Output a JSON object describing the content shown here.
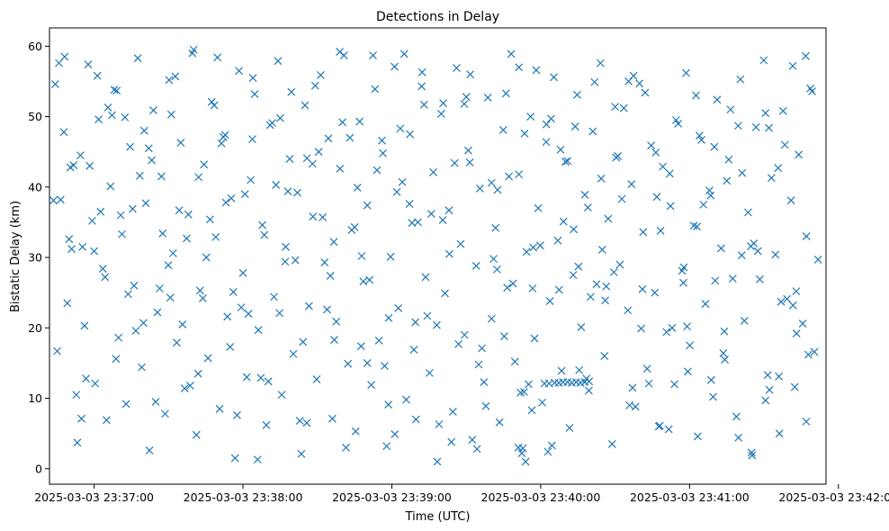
{
  "chart_data": {
    "type": "scatter",
    "title": "Detections in Delay",
    "xlabel": "Time (UTC)",
    "ylabel": "Bistatic Delay (km)",
    "x_units": "seconds since 2025-03-03 23:36:42",
    "xlim": [
      0,
      313
    ],
    "ylim": [
      -2.2,
      62.6
    ],
    "xticks": [
      18,
      78,
      138,
      198,
      258,
      318
    ],
    "xtick_labels": [
      "2025-03-03 23:37:00",
      "2025-03-03 23:38:00",
      "2025-03-03 23:39:00",
      "2025-03-03 23:40:00",
      "2025-03-03 23:41:00",
      "2025-03-03 23:42:00"
    ],
    "yticks": [
      0,
      10,
      20,
      30,
      40,
      50,
      60
    ],
    "ytick_labels": [
      "0",
      "10",
      "20",
      "30",
      "40",
      "50",
      "60"
    ],
    "marker": "x",
    "color": "#1f77b4",
    "series": [
      {
        "name": "detections",
        "x": [
          2.3,
          3.1,
          5.8,
          7.2,
          8.9,
          11.2,
          12.5,
          14.1,
          15.6,
          17.2,
          18.4,
          19.8,
          21.5,
          23.0,
          24.6,
          26.1,
          27.8,
          29.2,
          30.9,
          32.5,
          34.1,
          35.6,
          37.2,
          38.8,
          40.3,
          41.9,
          43.5,
          45.1,
          46.6,
          48.2,
          49.8,
          51.3,
          52.9,
          54.5,
          56.0,
          57.6,
          59.2,
          60.7,
          62.3,
          63.9,
          65.4,
          67.0,
          68.6,
          70.1,
          71.7,
          73.3,
          74.8,
          76.4,
          78.0,
          79.5,
          81.1,
          82.7,
          84.2,
          85.8,
          87.4,
          88.9,
          90.5,
          92.1,
          93.6,
          95.2,
          96.8,
          98.3,
          99.9,
          101.5,
          103.0,
          104.6,
          106.2,
          107.7,
          109.3,
          110.9,
          112.4,
          114.0,
          115.6,
          117.1,
          118.7,
          120.3,
          121.8,
          123.4,
          125.0,
          126.5,
          128.1,
          129.7,
          131.2,
          132.8,
          134.4,
          135.9,
          137.5,
          139.1,
          140.6,
          142.2,
          143.8,
          145.3,
          146.9,
          148.5,
          150.0,
          151.6,
          153.2,
          154.7,
          156.3,
          157.9,
          159.4,
          161.0,
          162.6,
          164.1,
          165.7,
          167.3,
          168.8,
          170.4,
          172.0,
          173.5,
          175.1,
          176.7,
          178.2,
          179.8,
          181.4,
          182.9,
          184.5,
          186.1,
          187.6,
          189.2,
          190.8,
          192.3,
          193.9,
          195.5,
          197.0,
          198.6,
          200.2,
          201.7,
          203.3,
          204.9,
          206.4,
          208.0,
          209.6,
          211.1,
          212.7,
          214.3,
          215.8,
          217.4,
          219.0,
          220.5,
          222.1,
          223.7,
          225.2,
          226.8,
          228.4,
          229.9,
          231.5,
          233.1,
          234.6,
          236.2,
          237.8,
          239.3,
          240.9,
          242.5,
          244.0,
          245.6,
          247.2,
          248.7,
          250.3,
          251.9,
          253.4,
          255.0,
          256.6,
          258.1,
          259.7,
          261.3,
          262.8,
          264.4,
          266.0,
          267.5,
          269.1,
          270.7,
          272.2,
          273.8,
          275.4,
          276.9,
          278.5,
          280.1,
          281.6,
          283.2,
          284.8,
          286.3,
          287.9,
          289.5,
          291.0,
          292.6,
          294.2,
          295.7,
          297.3,
          298.9,
          300.4,
          302.0,
          303.6,
          305.1,
          306.7,
          308.3,
          309.8,
          4.5,
          9.7,
          13.3,
          20.6,
          25.2,
          31.7,
          36.4,
          42.8,
          47.9,
          53.6,
          58.1,
          64.7,
          69.3,
          75.6,
          80.2,
          86.6,
          91.3,
          97.5,
          102.2,
          108.5,
          113.2,
          119.5,
          124.1,
          130.4,
          135.1,
          141.4,
          146.1,
          152.3,
          157.0,
          163.3,
          168.0,
          174.3,
          179.0,
          185.2,
          189.9,
          196.2,
          200.9,
          207.2,
          211.9,
          218.1,
          222.8,
          229.1,
          233.8,
          240.1,
          244.8,
          251.0,
          255.7,
          262.0,
          266.7,
          273.0,
          277.7,
          283.9,
          288.6,
          294.9,
          299.6,
          305.9,
          6.1,
          10.8,
          16.2,
          22.4,
          27.1,
          33.5,
          38.2,
          44.4,
          49.1,
          55.3,
          60.1,
          66.4,
          71.1,
          77.3,
          82.0,
          88.2,
          93.0,
          99.1,
          103.8,
          110.1,
          114.8,
          121.1,
          125.8,
          132.0,
          136.7,
          143.0,
          147.7,
          153.9,
          158.7,
          164.9,
          169.6,
          175.9,
          180.6,
          186.8,
          191.5,
          197.8,
          202.5,
          208.8,
          213.5,
          219.7,
          224.4,
          230.7,
          235.4,
          241.6,
          246.3,
          252.6,
          257.3,
          263.6,
          268.3,
          274.5,
          279.2,
          285.5,
          290.2,
          296.4,
          301.1,
          307.4,
          199.5,
          201.4,
          203.6,
          205.3,
          207.0,
          208.8,
          210.5,
          212.3,
          214.0,
          215.8,
          217.5,
          189.0,
          190.4,
          191.9,
          193.1,
          194.7,
          3.8,
          8.4,
          12.9,
          18.0,
          23.6,
          28.7,
          34.8,
          40.0,
          45.6,
          50.7,
          56.7,
          61.8,
          67.7,
          72.8,
          78.8,
          83.9,
          89.8,
          95.0,
          100.9,
          106.0,
          111.9,
          117.0,
          123.0,
          128.1,
          134.0,
          139.2,
          145.1,
          150.2,
          156.1,
          161.2,
          167.2,
          172.3,
          178.2,
          183.3,
          189.2,
          194.4,
          200.3,
          205.4,
          211.3,
          216.4,
          222.4,
          227.5,
          233.4,
          238.5,
          244.4,
          249.6,
          255.5,
          260.6,
          266.5,
          271.6,
          277.6,
          282.7,
          288.6,
          293.7,
          299.7,
          304.8,
          1.6,
          7.9,
          14.7,
          19.3,
          26.8,
          30.4,
          37.9,
          41.2,
          48.7,
          52.3,
          59.9,
          63.2,
          70.8,
          74.1,
          81.8,
          85.2,
          92.7,
          96.1,
          103.7,
          107.1,
          114.6,
          118.1,
          125.6,
          129.0,
          136.6,
          140.0,
          147.5,
          151.0,
          158.5,
          162.0,
          169.4,
          173.0,
          180.4,
          184.0,
          191.3,
          195.0,
          202.2,
          206.0,
          213.2,
          217.0,
          224.0,
          228.0,
          235.0,
          239.0,
          246.0,
          250.0,
          257.0,
          261.0,
          268.0,
          272.0,
          279.0,
          283.0,
          290.0,
          294.0,
          301.0,
          305.0
        ],
        "y": [
          54.6,
          16.7,
          47.8,
          23.5,
          31.2,
          3.7,
          44.5,
          20.3,
          57.4,
          35.2,
          12.1,
          49.6,
          28.4,
          6.9,
          40.1,
          53.8,
          18.6,
          33.3,
          9.2,
          45.7,
          26.0,
          58.3,
          14.4,
          37.7,
          2.6,
          50.9,
          22.2,
          41.5,
          7.8,
          55.2,
          30.6,
          17.9,
          46.3,
          11.4,
          36.1,
          59.0,
          4.8,
          25.3,
          43.2,
          15.7,
          52.1,
          32.9,
          8.5,
          47.1,
          21.6,
          38.4,
          1.5,
          56.5,
          27.8,
          13.0,
          41.0,
          53.2,
          19.7,
          34.6,
          6.2,
          48.8,
          24.4,
          57.9,
          10.5,
          31.5,
          44.0,
          16.3,
          39.2,
          2.1,
          51.6,
          23.1,
          35.8,
          12.7,
          55.9,
          29.3,
          46.9,
          7.1,
          20.9,
          42.6,
          58.7,
          14.9,
          33.9,
          5.3,
          49.3,
          26.6,
          37.4,
          11.9,
          53.9,
          18.2,
          44.8,
          3.2,
          30.1,
          57.1,
          22.8,
          40.7,
          9.8,
          47.5,
          16.9,
          35.0,
          54.3,
          27.2,
          13.6,
          42.1,
          1.0,
          50.4,
          24.9,
          36.7,
          8.1,
          56.9,
          31.9,
          19.0,
          45.2,
          4.1,
          28.8,
          39.8,
          12.3,
          52.7,
          21.3,
          34.2,
          6.6,
          48.1,
          25.7,
          58.9,
          15.2,
          41.8,
          2.9,
          30.8,
          50.0,
          18.5,
          37.0,
          9.4,
          46.4,
          23.8,
          55.6,
          32.4,
          13.9,
          43.6,
          5.8,
          27.5,
          53.1,
          20.1,
          38.9,
          11.1,
          47.9,
          26.2,
          57.6,
          16.0,
          35.5,
          3.5,
          44.2,
          29.0,
          51.2,
          22.5,
          40.4,
          8.8,
          54.7,
          33.6,
          14.2,
          45.9,
          25.0,
          6.0,
          42.9,
          19.4,
          37.3,
          12.0,
          49.0,
          28.1,
          56.2,
          17.5,
          34.5,
          4.6,
          46.7,
          23.4,
          39.5,
          10.2,
          52.4,
          31.3,
          15.5,
          43.9,
          27.0,
          7.4,
          55.3,
          21.0,
          36.4,
          1.9,
          48.5,
          26.9,
          58.0,
          13.3,
          41.3,
          30.4,
          5.0,
          50.8,
          24.1,
          38.1,
          11.6,
          44.6,
          20.6,
          33.0,
          54.0,
          16.6,
          29.7,
          38.2,
          43.1,
          31.5,
          36.5,
          50.2,
          24.8,
          41.6,
          9.5,
          28.9,
          20.5,
          59.5,
          35.4,
          46.2,
          7.6,
          22.0,
          33.2,
          40.3,
          53.5,
          18.0,
          45.0,
          27.4,
          3.0,
          39.9,
          58.7,
          14.6,
          48.3,
          34.9,
          21.7,
          6.3,
          43.4,
          52.8,
          17.1,
          29.8,
          41.5,
          10.8,
          56.6,
          2.4,
          35.1,
          48.6,
          24.4,
          31.1,
          44.4,
          9.0,
          53.4,
          38.6,
          20.0,
          28.6,
          47.3,
          12.6,
          40.9,
          4.4,
          32.0,
          50.5,
          23.7,
          57.2,
          16.2,
          58.5,
          10.5,
          43.0,
          27.2,
          53.7,
          36.9,
          48.0,
          25.6,
          50.3,
          32.7,
          41.4,
          51.6,
          37.8,
          22.9,
          55.5,
          12.4,
          49.8,
          29.6,
          44.1,
          35.7,
          18.3,
          47.0,
          30.2,
          42.4,
          21.4,
          58.9,
          7.0,
          36.2,
          51.9,
          17.7,
          56.0,
          8.9,
          39.6,
          26.3,
          47.6,
          31.7,
          3.3,
          43.7,
          14.0,
          54.9,
          25.9,
          38.3,
          55.8,
          12.1,
          33.8,
          49.5,
          13.8,
          37.5,
          26.7,
          51.0,
          42.0,
          30.9,
          11.2,
          46.0,
          19.2,
          53.6,
          12.1,
          12.1,
          12.2,
          12.2,
          12.3,
          12.3,
          12.2,
          12.3,
          12.2,
          12.3,
          12.4,
          3.0,
          2.2,
          1.0,
          12.0,
          25.6,
          57.6,
          42.8,
          7.1,
          30.9,
          51.3,
          36.0,
          19.6,
          45.5,
          33.4,
          55.7,
          11.8,
          24.2,
          58.4,
          17.3,
          39.0,
          1.3,
          49.1,
          29.4,
          6.8,
          43.3,
          22.6,
          59.2,
          34.3,
          15.0,
          46.6,
          4.9,
          37.6,
          56.3,
          20.4,
          30.5,
          51.8,
          2.8,
          40.6,
          18.8,
          57.0,
          8.3,
          48.9,
          25.4,
          34.0,
          12.8,
          41.2,
          27.9,
          55.0,
          19.9,
          44.9,
          5.6,
          26.4,
          53.0,
          38.8,
          16.4,
          48.7,
          31.6,
          9.7,
          42.7,
          23.2,
          58.6,
          38.1,
          32.6,
          12.8,
          55.8,
          15.6,
          49.9,
          20.7,
          43.8,
          24.3,
          36.7,
          13.5,
          30.0,
          47.4,
          25.1,
          46.8,
          12.9,
          22.1,
          39.4,
          6.5,
          54.4,
          32.2,
          49.2,
          17.4,
          26.8,
          9.1,
          39.3,
          20.8,
          51.7,
          35.3,
          3.8,
          43.5,
          14.8,
          28.3,
          53.3,
          10.9,
          31.4,
          49.7,
          45.3,
          28.7,
          37.1,
          23.9,
          51.4,
          11.5,
          25.5,
          6.1,
          41.9,
          20.2,
          34.4,
          45.7,
          19.5,
          30.3,
          2.3,
          48.4,
          13.1,
          25.2,
          6.7
        ]
      }
    ]
  }
}
